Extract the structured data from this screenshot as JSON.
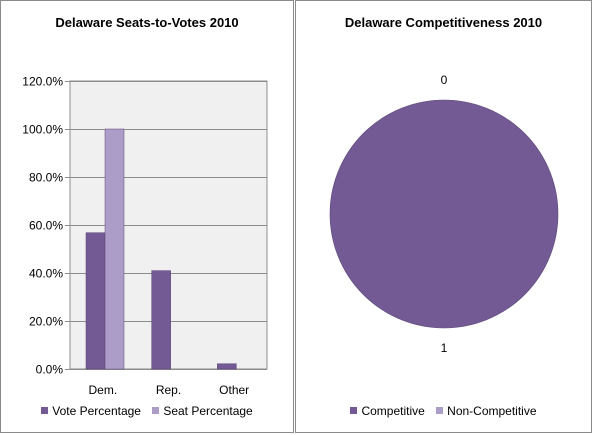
{
  "chart_data": [
    {
      "type": "bar",
      "title": "Delaware Seats-to-Votes 2010",
      "categories": [
        "Dem.",
        "Rep.",
        "Other"
      ],
      "series": [
        {
          "name": "Vote Percentage",
          "values": [
            56.8,
            41.0,
            2.2
          ],
          "color": "#735a95"
        },
        {
          "name": "Seat Percentage",
          "values": [
            100.0,
            0.0,
            0.0
          ],
          "color": "#ac9dc8"
        }
      ],
      "ylim": [
        0,
        120
      ],
      "yticks": [
        "0.0%",
        "20.0%",
        "40.0%",
        "60.0%",
        "80.0%",
        "100.0%",
        "120.0%"
      ],
      "grid": true,
      "plot_background": "#f0f0f0",
      "legend_position": "bottom"
    },
    {
      "type": "pie",
      "title": "Delaware Competitiveness 2010",
      "categories": [
        "Competitive",
        "Non-Competitive"
      ],
      "values": [
        1,
        0
      ],
      "data_labels": [
        "1",
        "0"
      ],
      "colors": [
        "#735a95",
        "#ac9dc8"
      ],
      "legend_position": "bottom"
    }
  ]
}
